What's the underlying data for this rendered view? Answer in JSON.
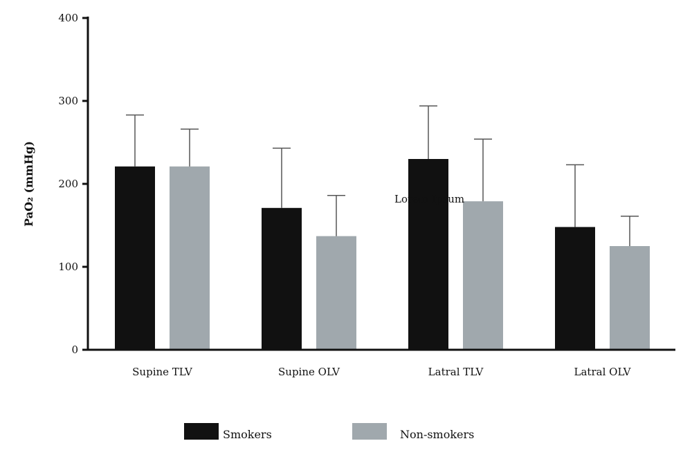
{
  "chart_data": {
    "type": "bar",
    "title": "",
    "xlabel": "",
    "ylabel": "PaO₂ (mmHg)",
    "ylim": [
      0,
      400
    ],
    "yticks": [
      0,
      100,
      200,
      300,
      400
    ],
    "categories": [
      "Supine TLV",
      "Supine OLV",
      "Latral TLV",
      "Latral OLV"
    ],
    "series": [
      {
        "name": "Smokers",
        "color": "#111111",
        "values": [
          221,
          171,
          230,
          148
        ],
        "error": [
          62,
          72,
          64,
          75
        ]
      },
      {
        "name": "Non-smokers",
        "color": "#a0a8ad",
        "values": [
          221,
          137,
          179,
          125
        ],
        "error": [
          45,
          49,
          75,
          36
        ]
      }
    ],
    "legend_position": "bottom",
    "grid": false,
    "watermark": "Lorem Ipsum"
  }
}
